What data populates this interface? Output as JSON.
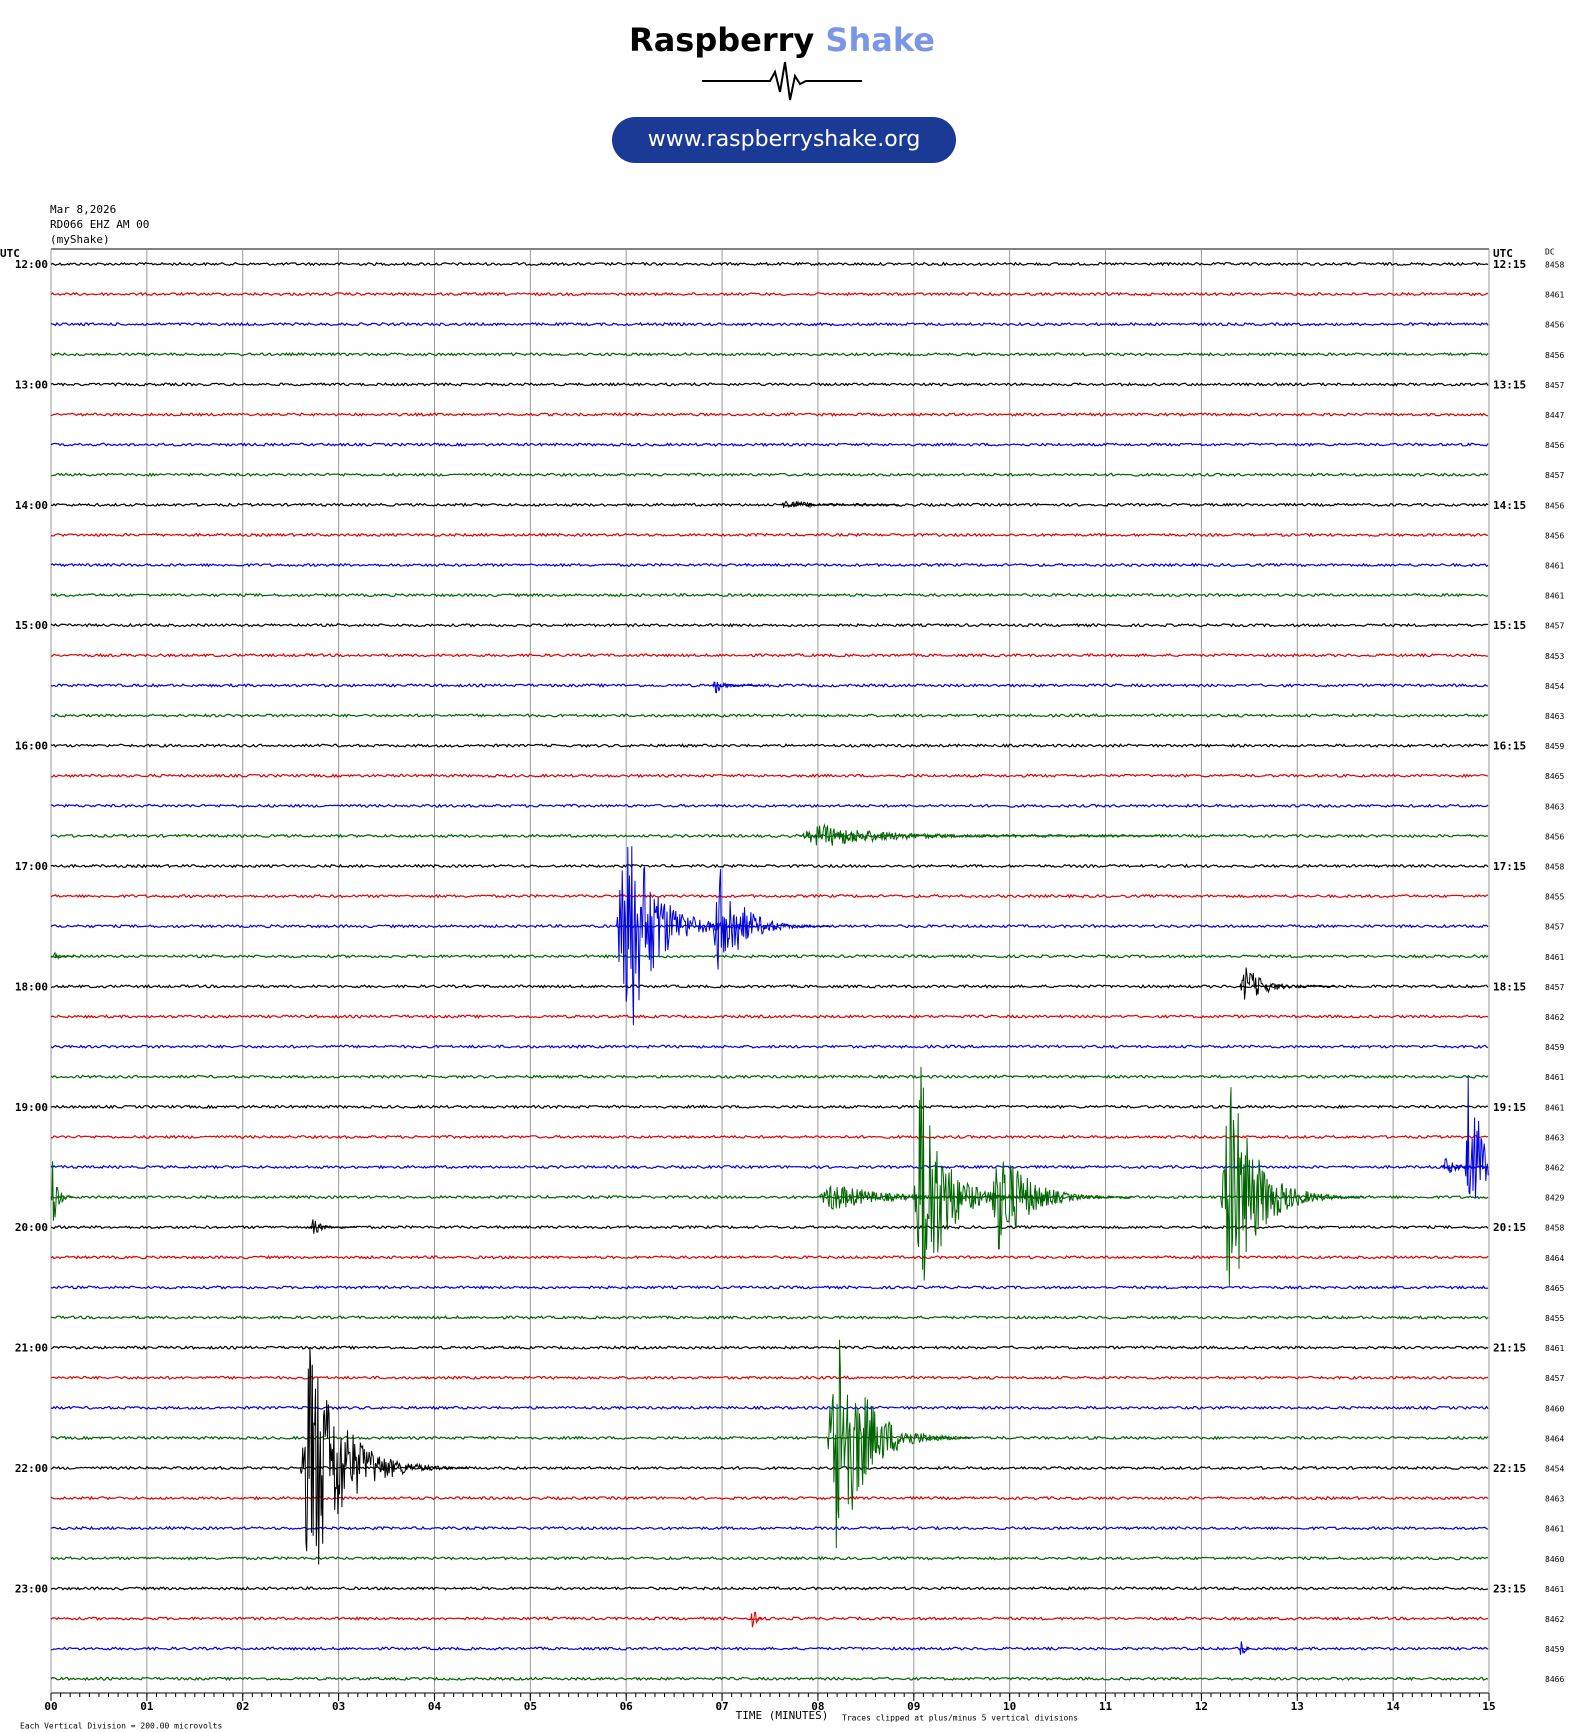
{
  "header": {
    "brand": "Raspberry",
    "brand2": "Shake",
    "url": "www.raspberryshake.org"
  },
  "chart_data": {
    "type": "helicorder",
    "date": "Mar 8,2026",
    "station": "RD066 EHZ AM 00",
    "network": "(myShake)",
    "left_axis_title": "UTC",
    "right_axis_title": "UTC",
    "dc_title": "DC",
    "row_colors": [
      "#000000",
      "#e00000",
      "#0000e0",
      "#006400"
    ],
    "hour_labels": [
      "12:00",
      "13:00",
      "14:00",
      "15:00",
      "16:00",
      "17:00",
      "18:00",
      "19:00",
      "20:00",
      "21:00",
      "22:00",
      "23:00"
    ],
    "right_labels": [
      "12:15",
      "13:15",
      "14:15",
      "15:15",
      "16:15",
      "17:15",
      "18:15",
      "19:15",
      "20:15",
      "21:15",
      "22:15",
      "23:15"
    ],
    "dc_values": [
      8458,
      8461,
      8456,
      8456,
      8457,
      8447,
      8456,
      8457,
      8456,
      8456,
      8461,
      8461,
      8457,
      8453,
      8454,
      8463,
      8459,
      8465,
      8463,
      8456,
      8458,
      8455,
      8457,
      8461,
      8457,
      8462,
      8459,
      8461,
      8461,
      8463,
      8462,
      8429,
      8458,
      8464,
      8465,
      8455,
      8461,
      8457,
      8460,
      8464,
      8454,
      8463,
      8461,
      8460,
      8461,
      8462,
      8459,
      8466
    ],
    "xlim": [
      0,
      15
    ],
    "xticks": [
      {
        "value": 0,
        "label": "00"
      },
      {
        "value": 1,
        "label": "01"
      },
      {
        "value": 2,
        "label": "02"
      },
      {
        "value": 3,
        "label": "03"
      },
      {
        "value": 4,
        "label": "04"
      },
      {
        "value": 5,
        "label": "05"
      },
      {
        "value": 6,
        "label": "06"
      },
      {
        "value": 7,
        "label": "07"
      },
      {
        "value": 8,
        "label": "08"
      },
      {
        "value": 9,
        "label": "09"
      },
      10,
      11,
      12,
      13,
      14,
      15
    ],
    "xlabel": "TIME (MINUTES)",
    "footer_left": "Each Vertical Division =  200.00 microvolts",
    "footer_right": "Traces clipped at plus/minus 5 vertical divisions",
    "grid": true,
    "events": [
      {
        "row": 8,
        "x": 7.6,
        "duration": 0.5,
        "amplitude": 0.2
      },
      {
        "row": 14,
        "x": 6.9,
        "duration": 0.2,
        "amplitude": 0.3
      },
      {
        "row": 19,
        "x": 7.8,
        "duration": 1.5,
        "amplitude": 0.4
      },
      {
        "row": 22,
        "x": 5.9,
        "duration": 0.6,
        "amplitude": 4.5
      },
      {
        "row": 22,
        "x": 6.9,
        "duration": 0.5,
        "amplitude": 2
      },
      {
        "row": 23,
        "x": 0,
        "duration": 0.1,
        "amplitude": 0.3
      },
      {
        "row": 24,
        "x": 12.4,
        "duration": 0.4,
        "amplitude": 0.7
      },
      {
        "row": 30,
        "x": 14.5,
        "duration": 0.3,
        "amplitude": 0.3
      },
      {
        "row": 30,
        "x": 14.75,
        "duration": 0.25,
        "amplitude": 4
      },
      {
        "row": 31,
        "x": 0,
        "duration": 0.1,
        "amplitude": 1.5
      },
      {
        "row": 31,
        "x": 8.0,
        "duration": 1.0,
        "amplitude": 0.5
      },
      {
        "row": 31,
        "x": 9.0,
        "duration": 0.5,
        "amplitude": 4.5
      },
      {
        "row": 31,
        "x": 9.8,
        "duration": 0.6,
        "amplitude": 2
      },
      {
        "row": 31,
        "x": 12.2,
        "duration": 0.6,
        "amplitude": 4
      },
      {
        "row": 32,
        "x": 2.7,
        "duration": 0.2,
        "amplitude": 0.3
      },
      {
        "row": 39,
        "x": 8.1,
        "duration": 0.6,
        "amplitude": 4.5
      },
      {
        "row": 40,
        "x": 2.6,
        "duration": 0.7,
        "amplitude": 4.5
      },
      {
        "row": 45,
        "x": 7.3,
        "duration": 0.05,
        "amplitude": 1.5
      },
      {
        "row": 46,
        "x": 12.4,
        "duration": 0.05,
        "amplitude": 1.2
      }
    ]
  }
}
